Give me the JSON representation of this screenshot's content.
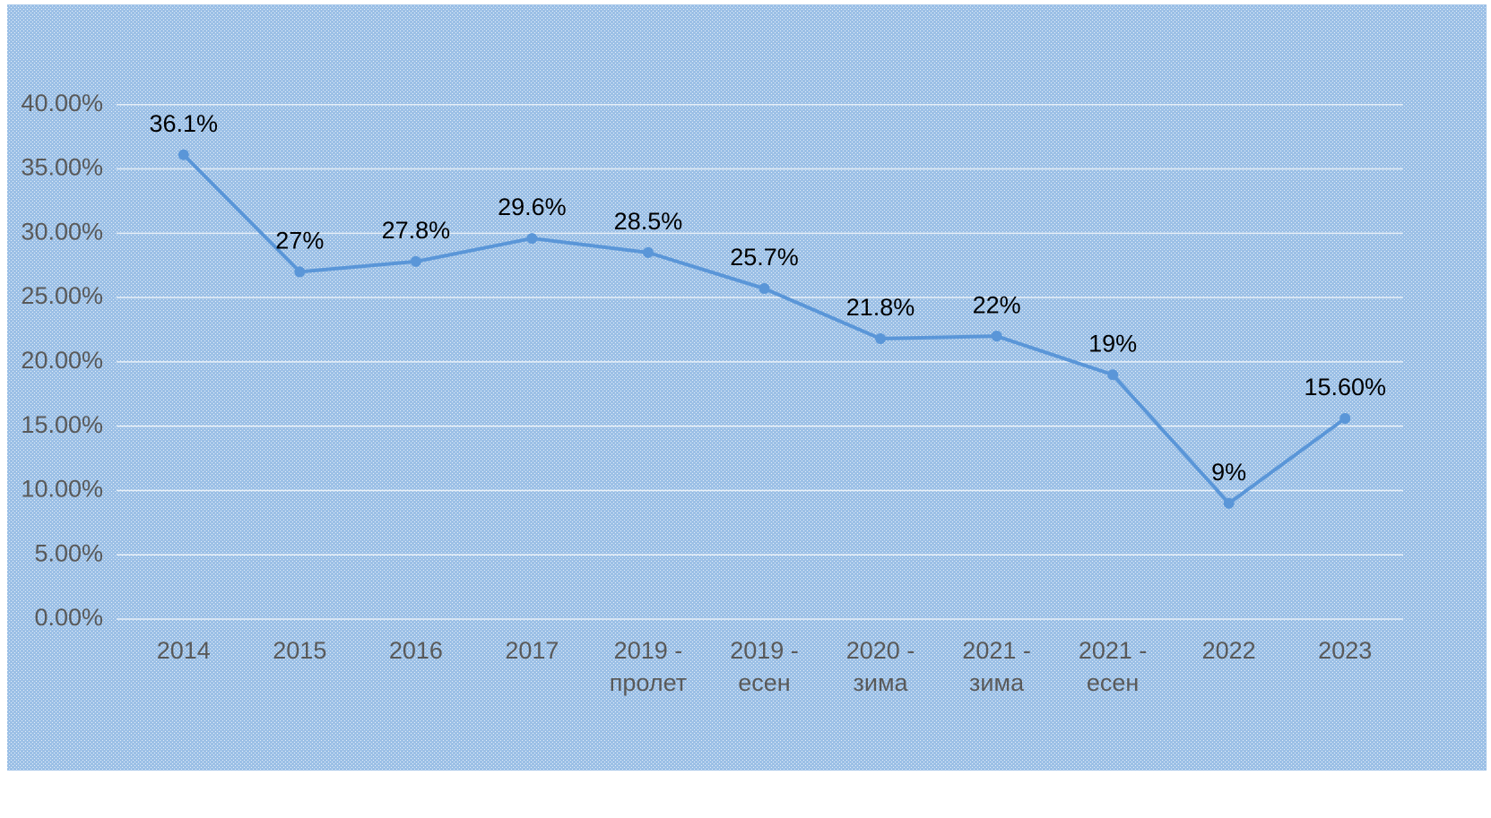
{
  "chart_data": {
    "type": "line",
    "categories": [
      "2014",
      "2015",
      "2016",
      "2017",
      "2019 - пролет",
      "2019 - есен",
      "2020 - зима",
      "2021 - зима",
      "2021 - есен",
      "2022",
      "2023"
    ],
    "series": [
      {
        "color": "#5a96d8",
        "values": [
          36.1,
          27,
          27.8,
          29.6,
          28.5,
          25.7,
          21.8,
          22,
          19,
          9,
          15.6
        ],
        "value_labels": [
          "36.1%",
          "27%",
          "27.8%",
          "29.6%",
          "28.5%",
          "25.7%",
          "21.8%",
          "22%",
          "19%",
          "9%",
          "15.60%"
        ]
      }
    ],
    "ylim": [
      0,
      45
    ],
    "yticks": [
      {
        "value": 0,
        "label": "0.00%"
      },
      {
        "value": 5,
        "label": "5.00%"
      },
      {
        "value": 10,
        "label": "10.00%"
      },
      {
        "value": 15,
        "label": "15.00%"
      },
      {
        "value": 20,
        "label": "20.00%"
      },
      {
        "value": 25,
        "label": "25.00%"
      },
      {
        "value": 30,
        "label": "30.00%"
      },
      {
        "value": 35,
        "label": "35.00%"
      },
      {
        "value": 40,
        "label": "40.00%"
      }
    ],
    "grid": true
  }
}
